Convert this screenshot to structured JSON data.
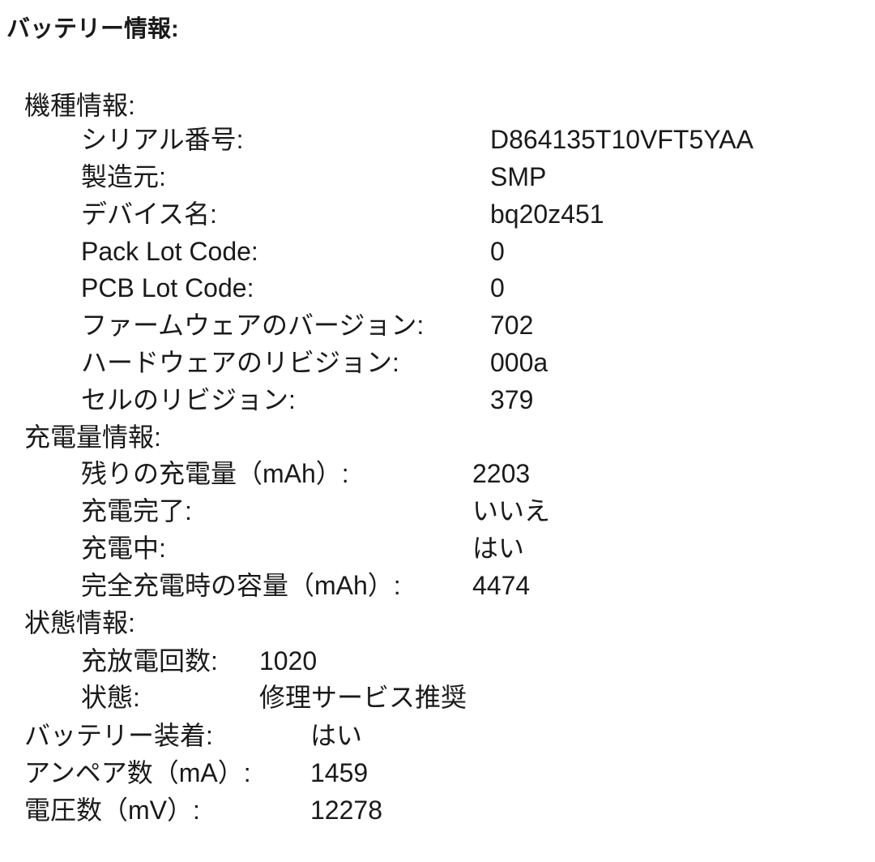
{
  "title": "バッテリー情報:",
  "model_info": {
    "label": "機種情報:",
    "items": [
      {
        "label": "シリアル番号:",
        "value": "D864135T10VFT5YAA"
      },
      {
        "label": "製造元:",
        "value": "SMP"
      },
      {
        "label": "デバイス名:",
        "value": "bq20z451"
      },
      {
        "label": "Pack Lot Code:",
        "value": "0"
      },
      {
        "label": "PCB Lot Code:",
        "value": "0"
      },
      {
        "label": "ファームウェアのバージョン:",
        "value": "702"
      },
      {
        "label": "ハードウェアのリビジョン:",
        "value": "000a"
      },
      {
        "label": "セルのリビジョン:",
        "value": "379"
      }
    ]
  },
  "charge_info": {
    "label": "充電量情報:",
    "items": [
      {
        "label": "残りの充電量（mAh）:",
        "value": "2203"
      },
      {
        "label": "充電完了:",
        "value": "いいえ"
      },
      {
        "label": "充電中:",
        "value": "はい"
      },
      {
        "label": "完全充電時の容量（mAh）:",
        "value": "4474"
      }
    ]
  },
  "health_info": {
    "label": "状態情報:",
    "items": [
      {
        "label": "充放電回数:",
        "value": "1020"
      },
      {
        "label": "状態:",
        "value": "修理サービス推奨"
      }
    ]
  },
  "top_level": [
    {
      "label": "バッテリー装着:",
      "value": "はい"
    },
    {
      "label": "アンペア数（mA）:",
      "value": "1459"
    },
    {
      "label": "電圧数（mV）:",
      "value": "12278"
    }
  ]
}
